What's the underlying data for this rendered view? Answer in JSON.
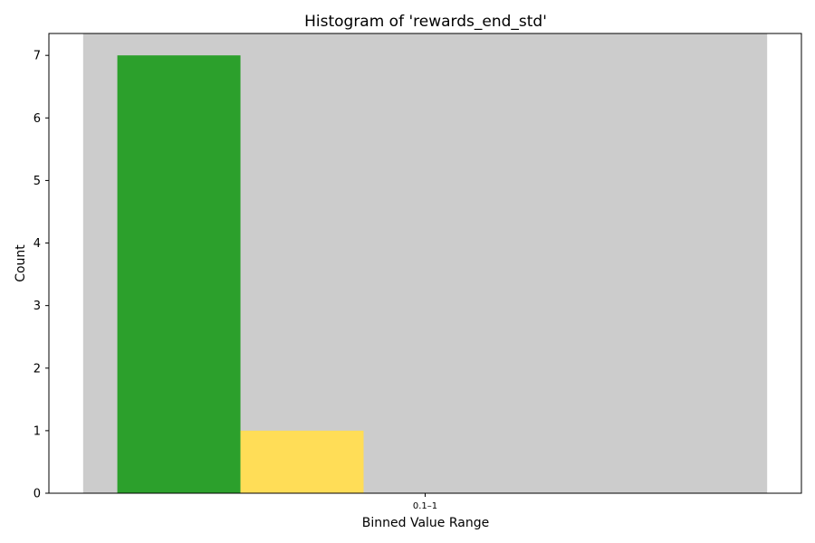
{
  "chart_data": {
    "type": "bar",
    "title": "Histogram of 'rewards_end_std'",
    "xlabel": "Binned Value Range",
    "ylabel": "Count",
    "categories": [
      "0.1–1"
    ],
    "series": [
      {
        "values": [
          7
        ],
        "color": "#2ca02c"
      },
      {
        "values": [
          1
        ],
        "color": "#ffdd57"
      },
      {
        "values": [
          0
        ],
        "color": "#e07b39"
      },
      {
        "values": [
          0
        ],
        "color": "#4f8bc9"
      },
      {
        "values": [
          0
        ],
        "color": "#9467bd"
      }
    ],
    "group_background_color": "#cccccc",
    "ylim": [
      0,
      7.35
    ],
    "yticks": [
      0,
      1,
      2,
      3,
      4,
      5,
      6,
      7
    ],
    "grid": false,
    "legend": "none"
  }
}
